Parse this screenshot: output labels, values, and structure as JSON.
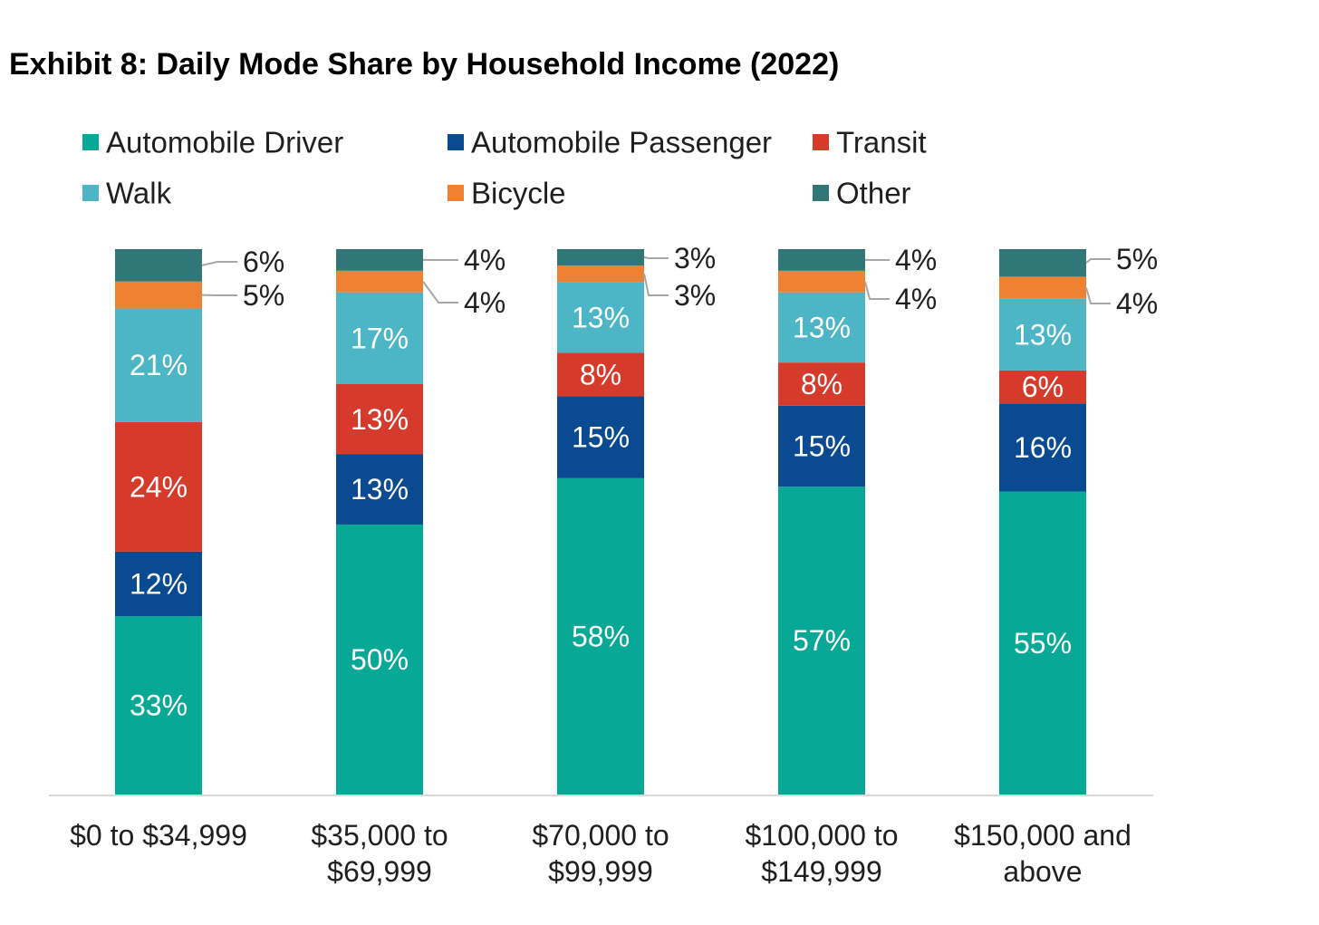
{
  "chart_data": {
    "type": "bar",
    "stacked": true,
    "title": "Exhibit 8: Daily Mode Share by Household Income (2022)",
    "categories": [
      "$0 to $34,999",
      "$35,000 to $69,999",
      "$70,000 to $99,999",
      "$100,000 to $149,999",
      "$150,000 and above"
    ],
    "category_lines": [
      [
        "$0 to $34,999"
      ],
      [
        "$35,000 to",
        "$69,999"
      ],
      [
        "$70,000 to",
        "$99,999"
      ],
      [
        "$100,000 to",
        "$149,999"
      ],
      [
        "$150,000 and",
        "above"
      ]
    ],
    "series": [
      {
        "name": "Automobile Driver",
        "color": "#07A896",
        "values": [
          33,
          50,
          58,
          57,
          55
        ],
        "labels": [
          "33%",
          "50%",
          "58%",
          "57%",
          "55%"
        ]
      },
      {
        "name": "Automobile Passenger",
        "color": "#0A4A91",
        "values": [
          12,
          13,
          15,
          15,
          16
        ],
        "labels": [
          "12%",
          "13%",
          "15%",
          "15%",
          "16%"
        ]
      },
      {
        "name": "Transit",
        "color": "#D63A2A",
        "values": [
          24,
          13,
          8,
          8,
          6
        ],
        "labels": [
          "24%",
          "13%",
          "8%",
          "8%",
          "6%"
        ]
      },
      {
        "name": "Walk",
        "color": "#4CB6C6",
        "values": [
          21,
          17,
          13,
          13,
          13
        ],
        "labels": [
          "21%",
          "17%",
          "13%",
          "13%",
          "13%"
        ]
      },
      {
        "name": "Bicycle",
        "color": "#EE8232",
        "values": [
          5,
          4,
          3,
          4,
          4
        ],
        "labels": [
          "5%",
          "4%",
          "3%",
          "4%",
          "4%"
        ]
      },
      {
        "name": "Other",
        "color": "#317777",
        "values": [
          6,
          4,
          3,
          4,
          5
        ],
        "labels": [
          "6%",
          "4%",
          "3%",
          "4%",
          "5%"
        ]
      }
    ],
    "ylim": [
      0,
      100
    ],
    "xlabel": "",
    "ylabel": "",
    "grid": false,
    "legend": "top"
  }
}
